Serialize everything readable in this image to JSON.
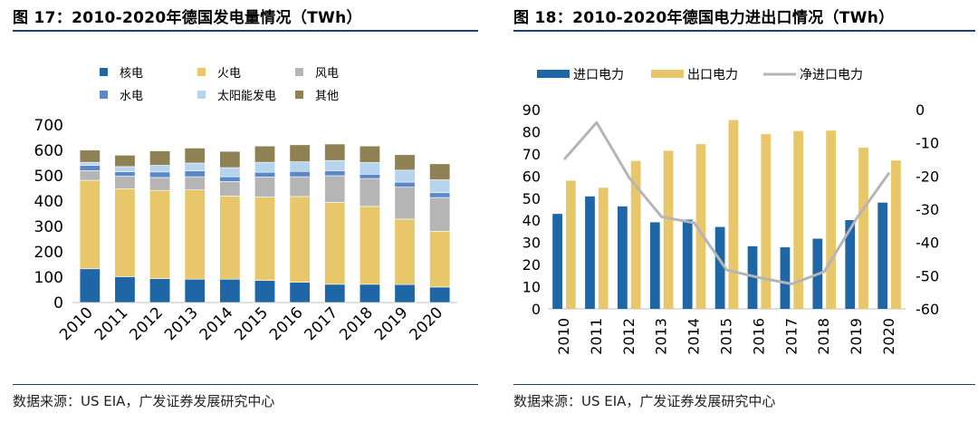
{
  "colors": {
    "rule": "#1f3f77",
    "nuclear": "#1f66a6",
    "thermal": "#e8c66a",
    "wind": "#b5b5b5",
    "hydro": "#5b88c9",
    "solar": "#b7d4ee",
    "other": "#8e8153",
    "import": "#1f66a6",
    "export": "#e8c66a",
    "net": "#b5b5b5"
  },
  "left": {
    "title": "图 17：2010-2020年德国发电量情况（TWh）",
    "source": "数据来源：US EIA，广发证券发展研究中心"
  },
  "right": {
    "title": "图 18：2010-2020年德国电力进出口情况（TWh）",
    "source": "数据来源：US EIA，广发证券发展研究中心"
  },
  "chart_data": [
    {
      "type": "bar",
      "stacked": true,
      "title": "图 17：2010-2020年德国发电量情况（TWh）",
      "categories": [
        "2010",
        "2011",
        "2012",
        "2013",
        "2014",
        "2015",
        "2016",
        "2017",
        "2018",
        "2019",
        "2020"
      ],
      "ylim": [
        0,
        700
      ],
      "yticks": [
        0,
        100,
        200,
        300,
        400,
        500,
        600,
        700
      ],
      "grid": false,
      "legend_position": "top",
      "series": [
        {
          "name": "核电",
          "color_key": "nuclear",
          "values": [
            133,
            102,
            94,
            92,
            92,
            87,
            80,
            72,
            72,
            71,
            61
          ]
        },
        {
          "name": "火电",
          "color_key": "thermal",
          "values": [
            349,
            347,
            348,
            352,
            328,
            329,
            338,
            323,
            307,
            258,
            220
          ]
        },
        {
          "name": "风电",
          "color_key": "wind",
          "values": [
            38,
            49,
            51,
            52,
            57,
            79,
            78,
            105,
            110,
            126,
            133
          ]
        },
        {
          "name": "水电",
          "color_key": "hydro",
          "values": [
            21,
            18,
            22,
            23,
            19,
            19,
            21,
            20,
            17,
            20,
            19
          ]
        },
        {
          "name": "太阳能发电",
          "color_key": "solar",
          "values": [
            12,
            20,
            26,
            31,
            36,
            39,
            38,
            40,
            46,
            47,
            51
          ]
        },
        {
          "name": "其他",
          "color_key": "other",
          "values": [
            48,
            45,
            57,
            59,
            64,
            64,
            67,
            65,
            65,
            61,
            63
          ]
        }
      ]
    },
    {
      "type": "bar",
      "title": "图 18：2010-2020年德国电力进出口情况（TWh）",
      "categories": [
        "2010",
        "2011",
        "2012",
        "2013",
        "2014",
        "2015",
        "2016",
        "2017",
        "2018",
        "2019",
        "2020"
      ],
      "ylim": [
        0,
        90
      ],
      "yticks": [
        0,
        10,
        20,
        30,
        40,
        50,
        60,
        70,
        80,
        90
      ],
      "y2lim": [
        -60,
        0
      ],
      "y2ticks": [
        0,
        -10,
        -20,
        -30,
        -40,
        -50,
        -60
      ],
      "grid": false,
      "legend_position": "top",
      "series": [
        {
          "name": "进口电力",
          "type": "bar",
          "axis": "left",
          "color_key": "import",
          "values": [
            42.9,
            50.8,
            46.3,
            39.1,
            40.3,
            37.0,
            28.3,
            27.8,
            31.7,
            40.1,
            48.0
          ]
        },
        {
          "name": "出口电力",
          "type": "bar",
          "axis": "left",
          "color_key": "export",
          "values": [
            57.9,
            54.7,
            66.8,
            71.4,
            74.4,
            85.3,
            78.9,
            80.3,
            80.5,
            72.8,
            67.0
          ]
        },
        {
          "name": "净进口电力",
          "type": "line",
          "axis": "right",
          "color_key": "net",
          "values": [
            -15.0,
            -3.9,
            -20.5,
            -32.3,
            -34.1,
            -48.3,
            -50.6,
            -52.5,
            -48.8,
            -32.7,
            -19.0
          ]
        }
      ]
    }
  ]
}
